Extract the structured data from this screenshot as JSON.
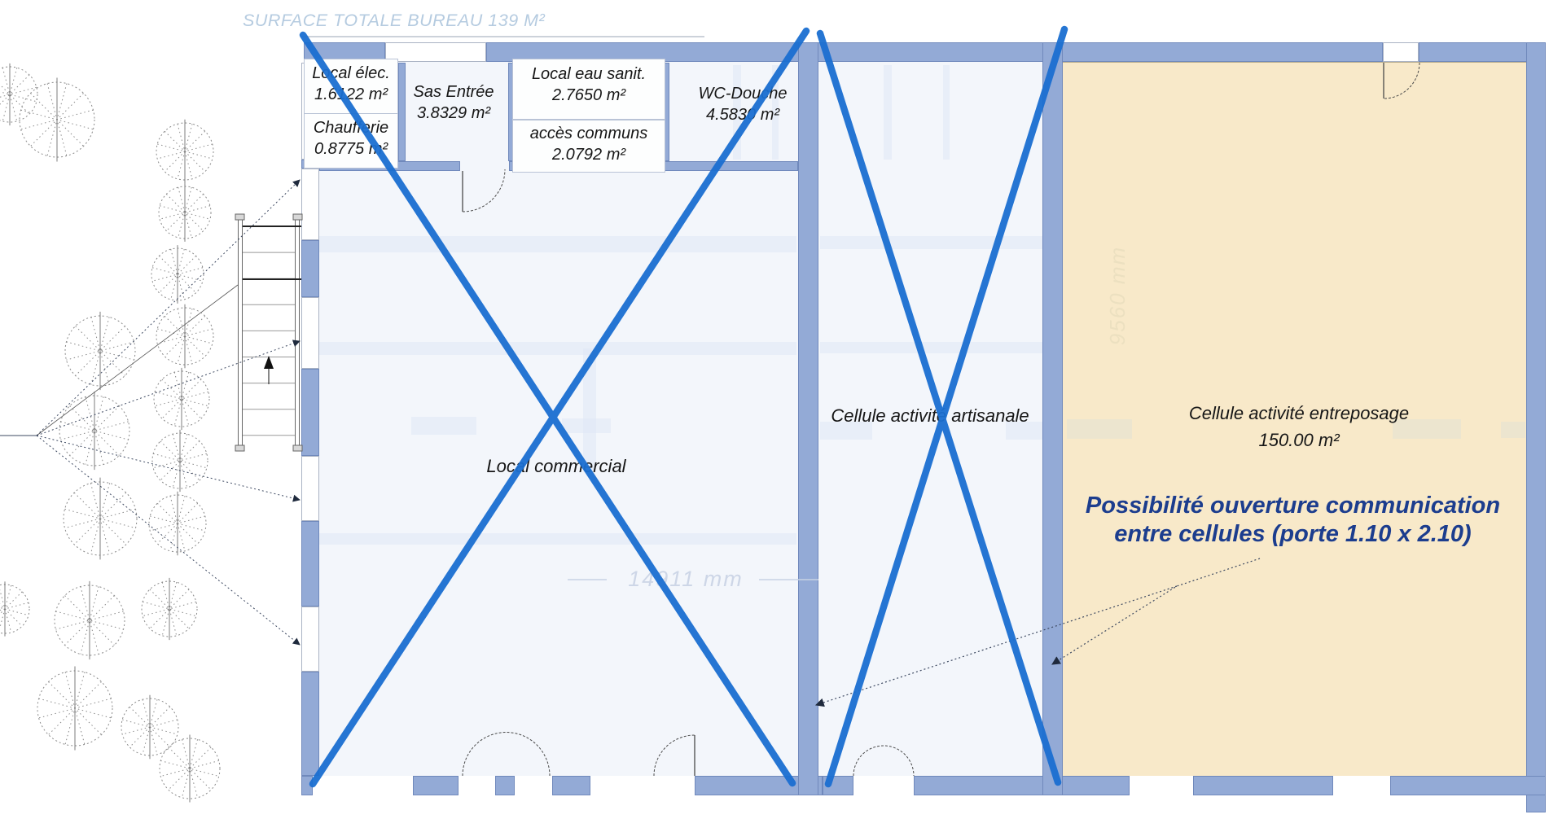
{
  "plan": {
    "title": "SURFACE TOTALE BUREAU 139 M²",
    "offices": [
      {
        "id": "local-elec",
        "name": "Local élec.",
        "area": "1.6122 m²"
      },
      {
        "id": "chaufferie",
        "name": "Chaufferie",
        "area": "0.8775 m²"
      },
      {
        "id": "sas-entree",
        "name": "Sas Entrée",
        "area": "3.8329 m²"
      },
      {
        "id": "local-eau-sanit",
        "name": "Local eau sanit.",
        "area": "2.7650 m²"
      },
      {
        "id": "acces-communs",
        "name": "accès communs",
        "area": "2.0792 m²"
      },
      {
        "id": "wc-douche",
        "name": "WC-Douche",
        "area": "4.5830 m²"
      }
    ],
    "cells": [
      {
        "id": "local-commercial",
        "name": "Local commercial",
        "area": ""
      },
      {
        "id": "cellule-artisanale",
        "name": "Cellule activité artisanale",
        "area": ""
      },
      {
        "id": "cellule-entreposage",
        "name": "Cellule activité entreposage",
        "area": "150.00 m²"
      }
    ],
    "annotation": {
      "line1": "Possibilité ouverture communication",
      "line2": "entre cellules (porte 1.10 x 2.10)"
    },
    "dimensions": {
      "horizontal": "14911 mm",
      "vertical": "9560 mm"
    },
    "colors": {
      "cross_blue": "#1b6fd1",
      "wall_blue": "#93aad6",
      "cell_fill": "#f3f6fb",
      "storage_fill": "#f8e9c9",
      "annotation_navy": "#1c3d8e",
      "title_blue": "#b5cbe0"
    }
  }
}
